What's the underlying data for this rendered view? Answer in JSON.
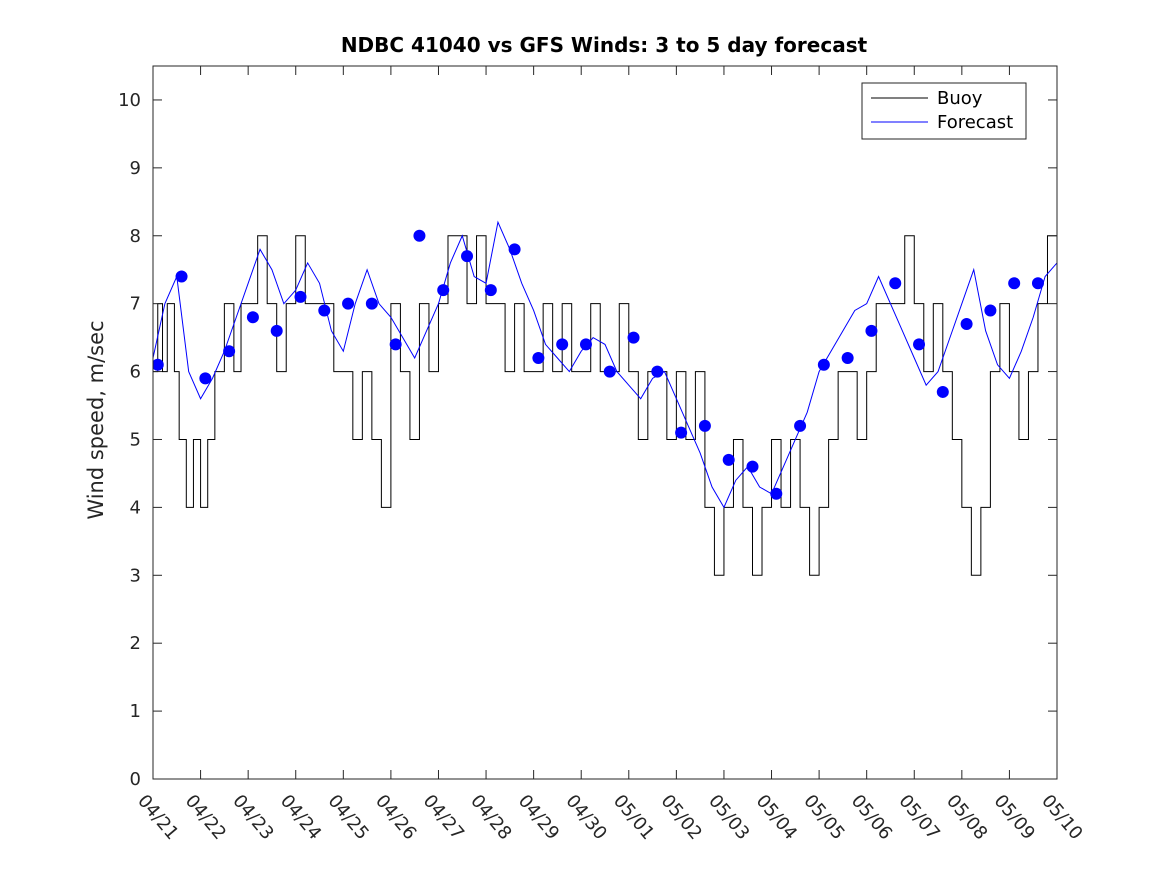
{
  "chart_data": {
    "type": "line",
    "title": "NDBC 41040 vs GFS Winds: 3 to 5 day forecast",
    "xlabel": "",
    "ylabel": "Wind speed, m/sec",
    "ylim": [
      0,
      10.5
    ],
    "y_ticks": [
      0,
      1,
      2,
      3,
      4,
      5,
      6,
      7,
      8,
      9,
      10
    ],
    "x_ticks": [
      "04/21",
      "04/22",
      "04/23",
      "04/24",
      "04/25",
      "04/26",
      "04/27",
      "04/28",
      "04/29",
      "04/30",
      "05/01",
      "05/02",
      "05/03",
      "05/04",
      "05/05",
      "05/06",
      "05/07",
      "05/08",
      "05/09",
      "05/10"
    ],
    "grid": false,
    "legend": {
      "position": "top-right",
      "entries": [
        "Buoy",
        "Forecast"
      ]
    },
    "colors": {
      "buoy": "#000000",
      "forecast": "#0000ff",
      "observed_points": "#0000ff"
    },
    "series": [
      {
        "name": "Buoy",
        "x_days": [
          0,
          0.1,
          0.2,
          0.3,
          0.45,
          0.55,
          0.7,
          0.85,
          1.0,
          1.15,
          1.3,
          1.5,
          1.7,
          1.85,
          2.0,
          2.2,
          2.4,
          2.6,
          2.8,
          3.0,
          3.2,
          3.4,
          3.6,
          3.8,
          4.0,
          4.2,
          4.4,
          4.6,
          4.8,
          5.0,
          5.2,
          5.4,
          5.6,
          5.8,
          6.0,
          6.2,
          6.4,
          6.6,
          6.8,
          7.0,
          7.2,
          7.4,
          7.6,
          7.8,
          8.0,
          8.2,
          8.4,
          8.6,
          8.8,
          9.0,
          9.2,
          9.4,
          9.6,
          9.8,
          10.0,
          10.2,
          10.4,
          10.6,
          10.8,
          11.0,
          11.2,
          11.4,
          11.6,
          11.8,
          12.0,
          12.2,
          12.4,
          12.6,
          12.8,
          13.0,
          13.2,
          13.4,
          13.6,
          13.8,
          14.0,
          14.2,
          14.4,
          14.6,
          14.8,
          15.0,
          15.2,
          15.4,
          15.6,
          15.8,
          16.0,
          16.2,
          16.4,
          16.6,
          16.8,
          17.0,
          17.2,
          17.4,
          17.6,
          17.8,
          18.0,
          18.2,
          18.4,
          18.6,
          18.8,
          19.0
        ],
        "values": [
          6,
          7,
          6,
          7,
          6,
          5,
          4,
          5,
          4,
          5,
          6,
          7,
          6,
          7,
          7,
          8,
          7,
          6,
          7,
          8,
          7,
          7,
          7,
          6,
          6,
          5,
          6,
          5,
          4,
          7,
          6,
          5,
          7,
          6,
          7,
          8,
          8,
          7,
          8,
          7,
          7,
          6,
          7,
          6,
          6,
          7,
          6,
          7,
          6,
          6,
          7,
          6,
          6,
          7,
          6,
          5,
          6,
          6,
          5,
          6,
          5,
          6,
          4,
          3,
          4,
          5,
          4,
          3,
          4,
          5,
          4,
          5,
          4,
          3,
          4,
          5,
          6,
          6,
          5,
          6,
          7,
          7,
          7,
          8,
          7,
          6,
          7,
          6,
          5,
          4,
          3,
          4,
          6,
          7,
          6,
          5,
          6,
          7,
          8,
          8
        ]
      },
      {
        "name": "Forecast",
        "x_days": [
          0,
          0.25,
          0.5,
          0.75,
          1.0,
          1.25,
          1.5,
          1.75,
          2.0,
          2.25,
          2.5,
          2.75,
          3.0,
          3.25,
          3.5,
          3.75,
          4.0,
          4.25,
          4.5,
          4.75,
          5.0,
          5.25,
          5.5,
          5.75,
          6.0,
          6.25,
          6.5,
          6.75,
          7.0,
          7.25,
          7.5,
          7.75,
          8.0,
          8.25,
          8.5,
          8.75,
          9.0,
          9.25,
          9.5,
          9.75,
          10.0,
          10.25,
          10.5,
          10.75,
          11.0,
          11.25,
          11.5,
          11.75,
          12.0,
          12.25,
          12.5,
          12.75,
          13.0,
          13.25,
          13.5,
          13.75,
          14.0,
          14.25,
          14.5,
          14.75,
          15.0,
          15.25,
          15.5,
          15.75,
          16.0,
          16.25,
          16.5,
          16.75,
          17.0,
          17.25,
          17.5,
          17.75,
          18.0,
          18.25,
          18.5,
          18.75,
          19.0
        ],
        "values": [
          6.2,
          7.0,
          7.4,
          6.0,
          5.6,
          5.9,
          6.3,
          6.8,
          7.3,
          7.8,
          7.5,
          7.0,
          7.2,
          7.6,
          7.3,
          6.6,
          6.3,
          7.0,
          7.5,
          7.0,
          6.8,
          6.5,
          6.2,
          6.6,
          7.0,
          7.6,
          8.0,
          7.4,
          7.3,
          8.2,
          7.8,
          7.3,
          6.9,
          6.4,
          6.2,
          6.0,
          6.3,
          6.5,
          6.4,
          6.0,
          5.8,
          5.6,
          5.9,
          6.0,
          5.6,
          5.2,
          4.8,
          4.3,
          4.0,
          4.4,
          4.6,
          4.3,
          4.2,
          4.6,
          5.0,
          5.4,
          6.0,
          6.3,
          6.6,
          6.9,
          7.0,
          7.4,
          7.0,
          6.6,
          6.2,
          5.8,
          6.0,
          6.5,
          7.0,
          7.5,
          6.6,
          6.1,
          5.9,
          6.3,
          6.8,
          7.4,
          7.6
        ]
      },
      {
        "name": "",
        "x_days": [
          0.1,
          0.6,
          1.1,
          1.6,
          2.1,
          2.6,
          3.1,
          3.6,
          4.1,
          4.6,
          5.1,
          5.6,
          6.1,
          6.6,
          7.1,
          7.6,
          8.1,
          8.6,
          9.1,
          9.6,
          10.1,
          10.6,
          11.1,
          11.6,
          12.1,
          12.6,
          13.1,
          13.6,
          14.1,
          14.6,
          15.1,
          15.6,
          16.1,
          16.6,
          17.1,
          17.6,
          18.1,
          18.6
        ],
        "values": [
          6.1,
          7.4,
          5.9,
          6.3,
          6.8,
          6.6,
          7.1,
          6.9,
          7.0,
          7.0,
          6.4,
          8.0,
          7.2,
          7.7,
          7.2,
          7.8,
          6.2,
          6.4,
          6.4,
          6.0,
          6.5,
          6.0,
          5.1,
          5.2,
          4.7,
          4.6,
          4.2,
          5.2,
          6.1,
          6.2,
          6.6,
          7.3,
          6.4,
          5.7,
          6.7,
          6.9,
          7.3,
          7.3
        ]
      }
    ]
  }
}
